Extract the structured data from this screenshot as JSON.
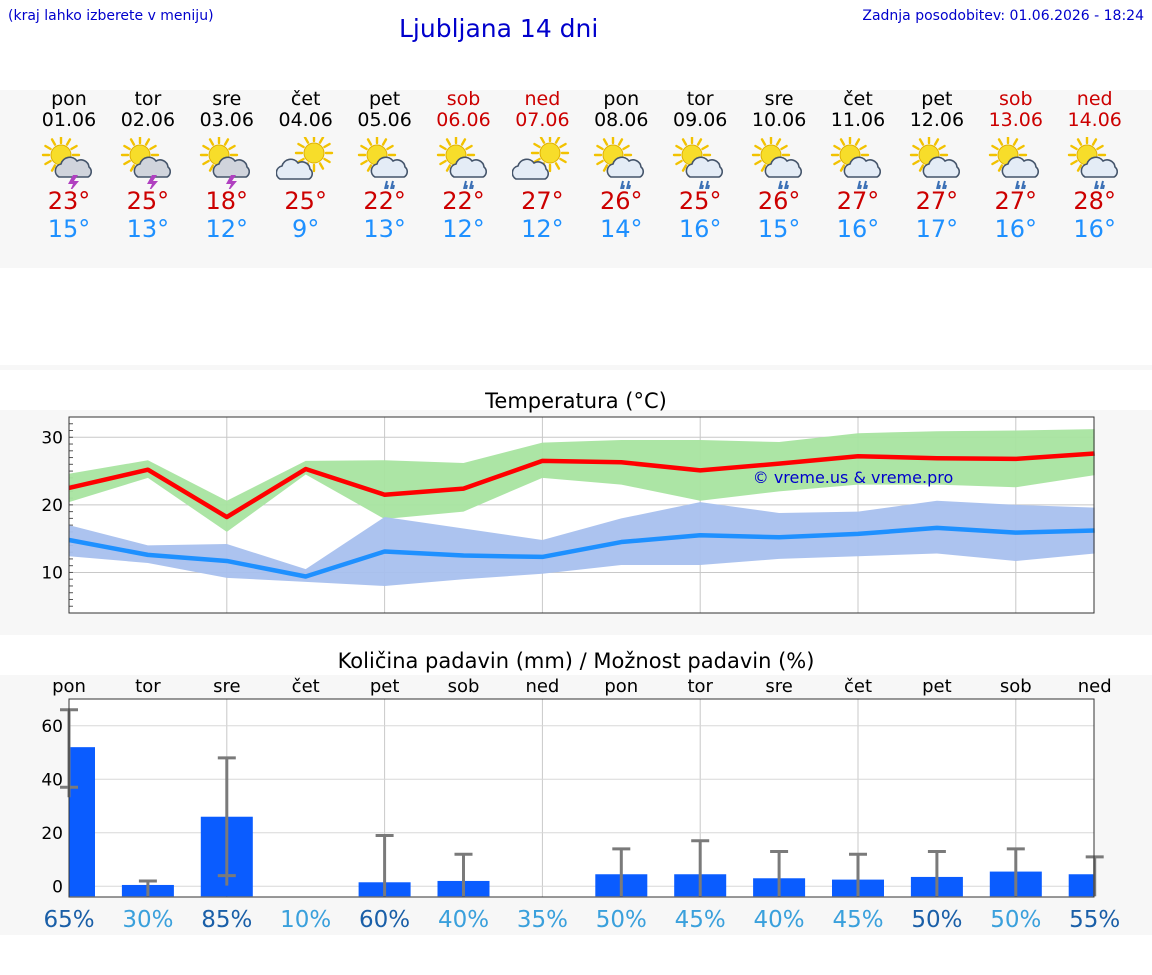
{
  "header": {
    "hint": "(kraj lahko izberete v meniju)",
    "title": "Ljubljana 14 dni",
    "updated": "Zadnja posodobitev: 01.06.2026 - 18:24"
  },
  "colors": {
    "link": "#0000cc",
    "max_temp": "#ff0000",
    "min_temp": "#1e90ff",
    "max_band": "#a8e4a0",
    "min_band": "#a8c0ee",
    "precip_bar": "#0a5cff",
    "weekend": "#cc0000"
  },
  "days": [
    {
      "name": "pon",
      "date": "01.06",
      "weekend": false,
      "icon": "sun-cloud-lightning-icon",
      "max": "23°",
      "min": "15°"
    },
    {
      "name": "tor",
      "date": "02.06",
      "weekend": false,
      "icon": "sun-cloud-lightning-icon",
      "max": "25°",
      "min": "13°"
    },
    {
      "name": "sre",
      "date": "03.06",
      "weekend": false,
      "icon": "sun-cloud-lightning-icon",
      "max": "18°",
      "min": "12°"
    },
    {
      "name": "čet",
      "date": "04.06",
      "weekend": false,
      "icon": "sun-cloud-icon",
      "max": "25°",
      "min": "9°"
    },
    {
      "name": "pet",
      "date": "05.06",
      "weekend": false,
      "icon": "sun-cloud-rain-icon",
      "max": "22°",
      "min": "13°"
    },
    {
      "name": "sob",
      "date": "06.06",
      "weekend": true,
      "icon": "sun-cloud-rain-icon",
      "max": "22°",
      "min": "12°"
    },
    {
      "name": "ned",
      "date": "07.06",
      "weekend": true,
      "icon": "sun-cloud-icon",
      "max": "27°",
      "min": "12°"
    },
    {
      "name": "pon",
      "date": "08.06",
      "weekend": false,
      "icon": "sun-cloud-rain-icon",
      "max": "26°",
      "min": "14°"
    },
    {
      "name": "tor",
      "date": "09.06",
      "weekend": false,
      "icon": "sun-cloud-rain-icon",
      "max": "25°",
      "min": "16°"
    },
    {
      "name": "sre",
      "date": "10.06",
      "weekend": false,
      "icon": "sun-cloud-rain-icon",
      "max": "26°",
      "min": "15°"
    },
    {
      "name": "čet",
      "date": "11.06",
      "weekend": false,
      "icon": "sun-cloud-rain-icon",
      "max": "27°",
      "min": "16°"
    },
    {
      "name": "pet",
      "date": "12.06",
      "weekend": false,
      "icon": "sun-cloud-rain-icon",
      "max": "27°",
      "min": "17°"
    },
    {
      "name": "sob",
      "date": "13.06",
      "weekend": true,
      "icon": "sun-cloud-rain-icon",
      "max": "27°",
      "min": "16°"
    },
    {
      "name": "ned",
      "date": "14.06",
      "weekend": true,
      "icon": "sun-cloud-rain-icon",
      "max": "28°",
      "min": "16°"
    }
  ],
  "chart_data": [
    {
      "type": "line",
      "title": "Temperatura (°C)",
      "watermark": "© vreme.us & vreme.pro",
      "x": [
        1,
        2,
        3,
        4,
        5,
        6,
        7,
        8,
        9,
        10,
        11,
        12,
        13,
        14
      ],
      "ylim": [
        4,
        33
      ],
      "yticks": [
        10,
        20,
        30
      ],
      "grid": true,
      "series": [
        {
          "values": [
            22.5,
            25.2,
            18.2,
            25.3,
            21.5,
            22.4,
            26.5,
            26.3,
            25.1,
            26.1,
            27.2,
            26.9,
            26.8,
            27.6
          ]
        },
        {
          "values": [
            14.8,
            12.6,
            11.7,
            9.4,
            13.1,
            12.5,
            12.3,
            14.5,
            15.5,
            15.2,
            15.7,
            16.6,
            15.9,
            16.2
          ]
        }
      ],
      "bands": [
        {
          "low": [
            20.4,
            24.0,
            16.0,
            24.5,
            17.9,
            19.0,
            24.0,
            23.0,
            20.6,
            22.0,
            23.0,
            23.0,
            22.6,
            24.4
          ],
          "high": [
            24.6,
            26.6,
            20.6,
            26.5,
            26.6,
            26.2,
            29.2,
            29.6,
            29.6,
            29.3,
            30.6,
            30.9,
            31.0,
            31.2
          ]
        },
        {
          "low": [
            12.4,
            11.4,
            9.2,
            8.6,
            8.0,
            9.0,
            9.8,
            11.1,
            11.1,
            12.0,
            12.4,
            12.8,
            11.7,
            12.8
          ],
          "high": [
            17.0,
            14.0,
            14.2,
            10.5,
            18.2,
            16.5,
            14.8,
            18.0,
            20.4,
            18.8,
            19.0,
            20.6,
            20.0,
            19.6
          ]
        }
      ]
    },
    {
      "type": "bar",
      "title": "Količina padavin (mm) / Možnost padavin (%)",
      "categories": [
        "pon",
        "tor",
        "sre",
        "čet",
        "pet",
        "sob",
        "ned",
        "pon",
        "tor",
        "sre",
        "čet",
        "pet",
        "sob",
        "ned"
      ],
      "values": [
        52,
        0.5,
        26,
        0,
        1.5,
        2,
        0,
        4.5,
        4.5,
        3,
        2.5,
        3.5,
        5.5,
        4.5
      ],
      "error_high": [
        66,
        2,
        48,
        0,
        19,
        12,
        0,
        14,
        17,
        13,
        12,
        13,
        14,
        11
      ],
      "error_low": [
        37,
        0,
        4,
        0,
        0,
        0,
        0,
        0,
        0,
        0,
        0,
        0,
        0,
        0
      ],
      "probability": [
        "65%",
        "30%",
        "85%",
        "10%",
        "60%",
        "40%",
        "35%",
        "50%",
        "45%",
        "40%",
        "45%",
        "50%",
        "50%",
        "55%"
      ],
      "probability_dark": [
        true,
        false,
        true,
        false,
        true,
        false,
        false,
        false,
        false,
        false,
        false,
        true,
        false,
        true
      ],
      "ylim": [
        -4,
        70
      ],
      "yticks": [
        0,
        20,
        40,
        60
      ],
      "grid": true
    }
  ]
}
